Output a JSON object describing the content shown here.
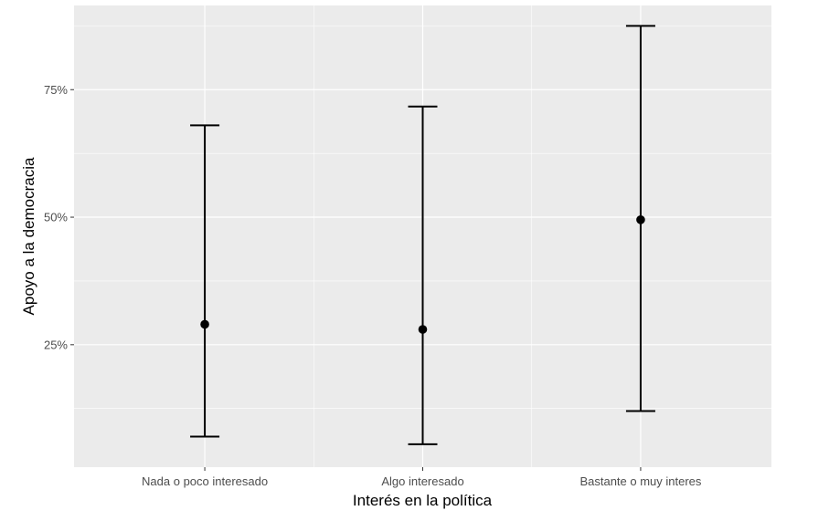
{
  "chart_data": {
    "type": "errorbar",
    "xlabel": "Interés en la política",
    "ylabel": "Apoyo a la democracia",
    "categories": [
      "Nada o poco interesado",
      "Algo interesado",
      "Bastante o muy interes"
    ],
    "points": [
      {
        "category": "Nada o poco interesado",
        "estimate": 0.29,
        "lower": 0.07,
        "upper": 0.68
      },
      {
        "category": "Algo interesado",
        "estimate": 0.28,
        "lower": 0.055,
        "upper": 0.717
      },
      {
        "category": "Bastante o muy interes",
        "estimate": 0.495,
        "lower": 0.12,
        "upper": 0.875
      }
    ],
    "y_ticks": [
      {
        "value": 0.25,
        "label": "25%"
      },
      {
        "value": 0.5,
        "label": "50%"
      },
      {
        "value": 0.75,
        "label": "75%"
      }
    ],
    "ylim": [
      0.01,
      0.915
    ],
    "grid": true,
    "colors": {
      "panel_background": "#ebebeb",
      "grid_major": "#ffffff",
      "marks": "#000000",
      "tick_text": "#4d4d4d",
      "tick_mark": "#333333"
    }
  }
}
